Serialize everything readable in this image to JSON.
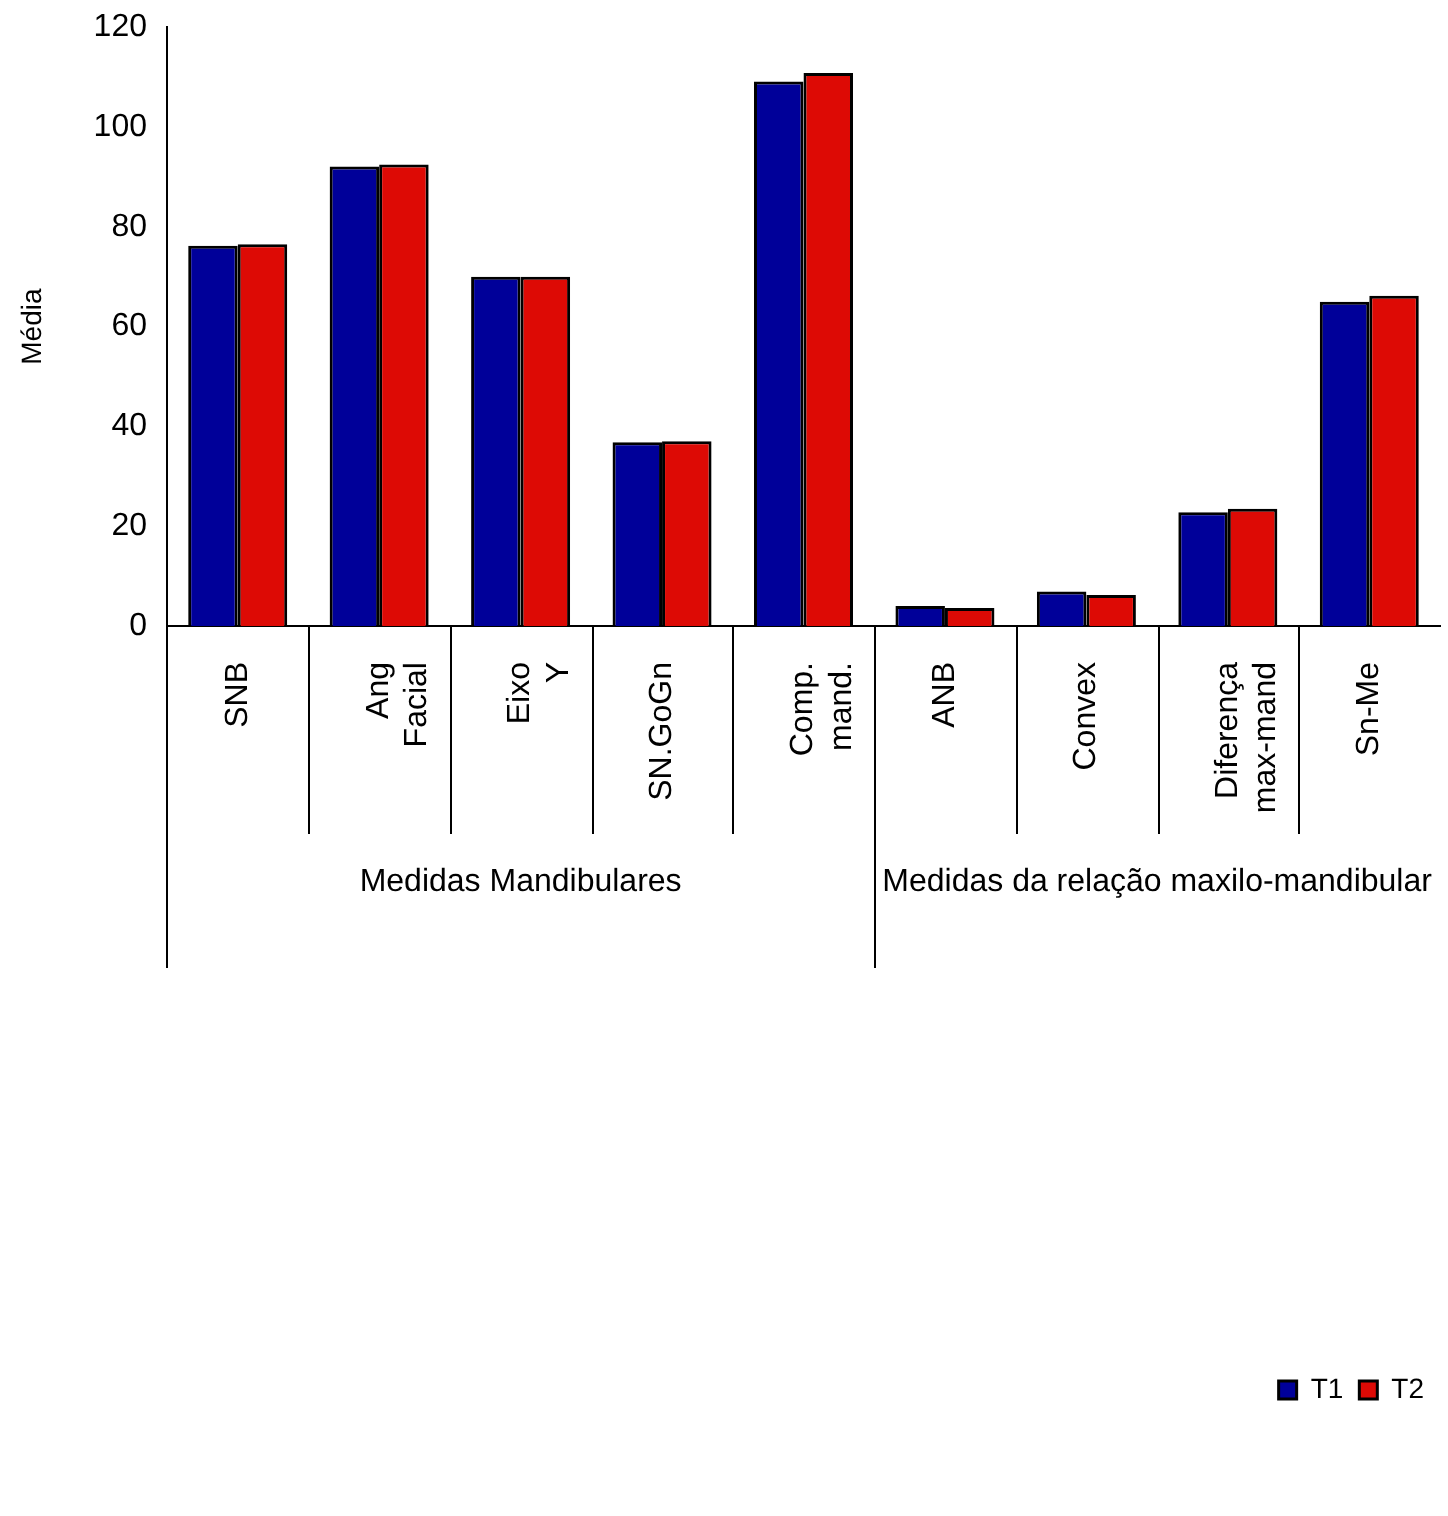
{
  "chart_data": {
    "type": "bar",
    "ylabel": "Média",
    "categories": [
      "SNB",
      "Ang Facial",
      "Eixo Y",
      "SN.GoGn",
      "Comp. mand.",
      "ANB",
      "Convex",
      "Diferença max-mand",
      "Sn-Me"
    ],
    "series": [
      {
        "name": "T1",
        "color": "#000099",
        "values": [
          76.2,
          92.1,
          70,
          36.8,
          109.1,
          4,
          6.9,
          22.8,
          65
        ]
      },
      {
        "name": "T2",
        "color": "#dd0a05",
        "values": [
          76.5,
          92.5,
          70,
          37,
          110.8,
          3.6,
          6.2,
          23.5,
          66.2
        ]
      }
    ],
    "annotations": [
      "Medidas Mandibulares",
      "Medidas da relação maxilo-mandibular"
    ],
    "ylim": [
      0,
      120
    ],
    "yticks": [
      0,
      20,
      40,
      60,
      80,
      100,
      120
    ],
    "grid": false,
    "legend": "bottom right"
  }
}
